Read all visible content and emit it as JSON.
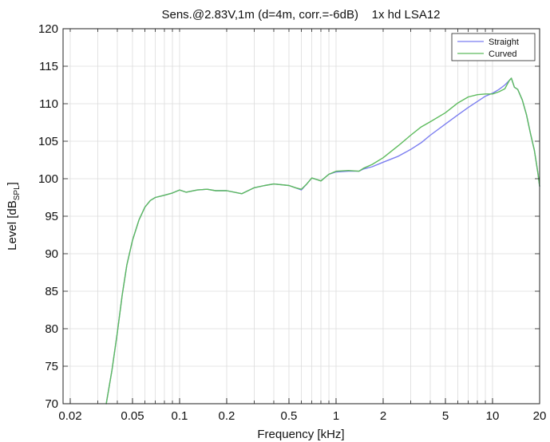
{
  "chart_data": {
    "type": "line",
    "title": "Sens.@2.83V,1m (d=4m, corr.=-6dB)    1x hd LSA12",
    "xlabel": "Frequency [kHz]",
    "ylabel": "Level [dB",
    "ylabel_sub": "SPL",
    "ylabel_suffix": "]",
    "x_scale": "log",
    "xlim": [
      0.018,
      20
    ],
    "ylim": [
      70,
      120
    ],
    "x_ticks": [
      0.02,
      0.05,
      0.1,
      0.2,
      0.5,
      1,
      2,
      5,
      10,
      20
    ],
    "x_tick_labels": [
      "0.02",
      "0.05",
      "0.1",
      "0.2",
      "0.5",
      "1",
      "2",
      "5",
      "10",
      "20"
    ],
    "y_ticks": [
      70,
      75,
      80,
      85,
      90,
      95,
      100,
      105,
      110,
      115,
      120
    ],
    "y_tick_labels": [
      "70",
      "75",
      "80",
      "85",
      "90",
      "95",
      "100",
      "105",
      "110",
      "115",
      "120"
    ],
    "grid": true,
    "legend_position": "top-right",
    "series": [
      {
        "name": "Straight",
        "color": "#7b7ef0",
        "x": [
          0.034,
          0.037,
          0.04,
          0.043,
          0.046,
          0.05,
          0.055,
          0.06,
          0.065,
          0.07,
          0.08,
          0.09,
          0.1,
          0.11,
          0.13,
          0.15,
          0.17,
          0.2,
          0.25,
          0.3,
          0.35,
          0.4,
          0.5,
          0.55,
          0.6,
          0.65,
          0.7,
          0.75,
          0.8,
          0.9,
          1.0,
          1.2,
          1.4,
          1.5,
          1.7,
          2.0,
          2.5,
          3.0,
          3.5,
          4.0,
          5.0,
          6.0,
          7.0,
          8.0,
          9.0,
          10.0,
          11.0,
          12.0,
          12.8,
          13.2,
          13.8,
          14.5,
          15.5,
          16.5,
          17.5,
          18.5,
          19.5,
          20.0
        ],
        "y": [
          70.0,
          74.5,
          79.5,
          84.5,
          88.5,
          91.8,
          94.5,
          96.2,
          97.1,
          97.5,
          97.8,
          98.1,
          98.5,
          98.2,
          98.5,
          98.6,
          98.4,
          98.4,
          98.0,
          98.8,
          99.1,
          99.3,
          99.1,
          98.8,
          98.5,
          99.3,
          100.1,
          99.9,
          99.7,
          100.6,
          100.9,
          101.0,
          101.0,
          101.3,
          101.6,
          102.2,
          103.0,
          103.9,
          104.8,
          105.8,
          107.3,
          108.5,
          109.5,
          110.3,
          111.0,
          111.4,
          111.9,
          112.5,
          113.1,
          113.4,
          112.2,
          111.9,
          110.5,
          108.5,
          106.0,
          103.8,
          100.8,
          99.0
        ]
      },
      {
        "name": "Curved",
        "color": "#5dbb5d",
        "x": [
          0.034,
          0.037,
          0.04,
          0.043,
          0.046,
          0.05,
          0.055,
          0.06,
          0.065,
          0.07,
          0.08,
          0.09,
          0.1,
          0.11,
          0.13,
          0.15,
          0.17,
          0.2,
          0.25,
          0.3,
          0.35,
          0.4,
          0.5,
          0.55,
          0.6,
          0.65,
          0.7,
          0.75,
          0.8,
          0.9,
          1.0,
          1.2,
          1.4,
          1.5,
          1.7,
          2.0,
          2.5,
          3.0,
          3.5,
          4.0,
          5.0,
          6.0,
          7.0,
          8.0,
          9.0,
          10.0,
          11.0,
          12.0,
          12.8,
          13.2,
          13.8,
          14.5,
          15.5,
          16.5,
          17.5,
          18.5,
          19.5,
          20.0
        ],
        "y": [
          70.0,
          74.5,
          79.5,
          84.5,
          88.5,
          91.8,
          94.5,
          96.2,
          97.1,
          97.5,
          97.8,
          98.1,
          98.5,
          98.2,
          98.5,
          98.6,
          98.4,
          98.4,
          98.0,
          98.8,
          99.1,
          99.3,
          99.1,
          98.8,
          98.6,
          99.3,
          100.1,
          99.9,
          99.7,
          100.6,
          101.0,
          101.1,
          101.0,
          101.4,
          101.9,
          102.8,
          104.4,
          105.8,
          106.9,
          107.6,
          108.8,
          110.1,
          110.9,
          111.2,
          111.3,
          111.3,
          111.6,
          112.0,
          113.1,
          113.4,
          112.2,
          111.9,
          110.5,
          108.5,
          106.0,
          103.8,
          100.8,
          99.0
        ]
      }
    ]
  }
}
